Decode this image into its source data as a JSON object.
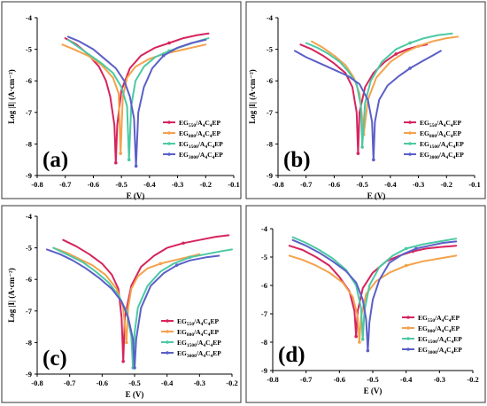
{
  "chart_data": [
    {
      "type": "line",
      "panel_label": "(a)",
      "xlabel": "E (V)",
      "ylabel": "Log |I| (A·cm⁻²)",
      "xlim": [
        -0.8,
        -0.1
      ],
      "ylim": [
        -9,
        -4
      ],
      "xticks": [
        "-0.8",
        "-0.7",
        "-0.6",
        "-0.5",
        "-0.4",
        "-0.3",
        "-0.2",
        "-0.1"
      ],
      "yticks": [
        "-4",
        "-5",
        "-6",
        "-7",
        "-8",
        "-9"
      ],
      "legend_position": "bottom-right",
      "series": [
        {
          "name": "EG550/A4C4EP",
          "color": "#d6245c",
          "x": [
            -0.7,
            -0.66,
            -0.62,
            -0.58,
            -0.555,
            -0.54,
            -0.525,
            -0.52,
            -0.515,
            -0.5,
            -0.47,
            -0.43,
            -0.38,
            -0.33,
            -0.28,
            -0.23,
            -0.19
          ],
          "y": [
            -4.65,
            -4.85,
            -5.15,
            -5.55,
            -6.0,
            -6.5,
            -7.4,
            -8.6,
            -7.4,
            -6.3,
            -5.6,
            -5.2,
            -4.95,
            -4.8,
            -4.65,
            -4.55,
            -4.5
          ]
        },
        {
          "name": "EG800/A4C4EP",
          "color": "#f4a24c",
          "x": [
            -0.71,
            -0.67,
            -0.62,
            -0.57,
            -0.53,
            -0.51,
            -0.503,
            -0.495,
            -0.48,
            -0.45,
            -0.4,
            -0.35,
            -0.3,
            -0.25,
            -0.2
          ],
          "y": [
            -4.85,
            -5.0,
            -5.2,
            -5.5,
            -5.9,
            -6.4,
            -8.3,
            -6.5,
            -5.9,
            -5.55,
            -5.3,
            -5.15,
            -5.05,
            -4.95,
            -4.85
          ]
        },
        {
          "name": "EG1500/A4C4EP",
          "color": "#4cc9a4",
          "x": [
            -0.69,
            -0.65,
            -0.61,
            -0.57,
            -0.53,
            -0.5,
            -0.48,
            -0.473,
            -0.465,
            -0.45,
            -0.42,
            -0.38,
            -0.33,
            -0.28,
            -0.23,
            -0.19
          ],
          "y": [
            -4.7,
            -4.95,
            -5.2,
            -5.45,
            -5.75,
            -6.2,
            -6.8,
            -8.5,
            -6.8,
            -6.0,
            -5.55,
            -5.25,
            -5.05,
            -4.9,
            -4.75,
            -4.65
          ]
        },
        {
          "name": "EG3000/A4C4EP",
          "color": "#5b5fc7",
          "x": [
            -0.69,
            -0.65,
            -0.6,
            -0.56,
            -0.52,
            -0.49,
            -0.47,
            -0.455,
            -0.448,
            -0.44,
            -0.42,
            -0.39,
            -0.35,
            -0.3,
            -0.25,
            -0.2
          ],
          "y": [
            -4.6,
            -4.75,
            -5.0,
            -5.3,
            -5.6,
            -6.0,
            -6.5,
            -7.2,
            -8.7,
            -7.0,
            -6.2,
            -5.6,
            -5.2,
            -4.95,
            -4.8,
            -4.7
          ]
        }
      ]
    },
    {
      "type": "line",
      "panel_label": "(b)",
      "xlabel": "E (V)",
      "ylabel": "Log |I| (A·cm⁻²)",
      "xlim": [
        -0.8,
        -0.1
      ],
      "ylim": [
        -9,
        -4
      ],
      "xticks": [
        "-0.8",
        "-0.7",
        "-0.6",
        "-0.5",
        "-0.4",
        "-0.3",
        "-0.2",
        "-0.1"
      ],
      "yticks": [
        "-4",
        "-5",
        "-6",
        "-7",
        "-8",
        "-9"
      ],
      "legend_position": "bottom-right",
      "series": [
        {
          "name": "EG550/A4C4EP",
          "color": "#d6245c",
          "x": [
            -0.72,
            -0.68,
            -0.64,
            -0.6,
            -0.56,
            -0.535,
            -0.52,
            -0.515,
            -0.51,
            -0.49,
            -0.46,
            -0.42,
            -0.38,
            -0.34,
            -0.3,
            -0.27
          ],
          "y": [
            -4.85,
            -5.0,
            -5.2,
            -5.45,
            -5.75,
            -6.2,
            -7.0,
            -8.3,
            -7.0,
            -6.2,
            -5.75,
            -5.4,
            -5.15,
            -5.0,
            -4.9,
            -4.85
          ]
        },
        {
          "name": "EG800/A4C4EP",
          "color": "#f4a24c",
          "x": [
            -0.68,
            -0.64,
            -0.6,
            -0.56,
            -0.53,
            -0.51,
            -0.5,
            -0.495,
            -0.48,
            -0.45,
            -0.4,
            -0.35,
            -0.3,
            -0.25,
            -0.2,
            -0.16
          ],
          "y": [
            -4.75,
            -4.95,
            -5.2,
            -5.5,
            -5.9,
            -6.4,
            -7.2,
            -7.7,
            -6.6,
            -5.9,
            -5.4,
            -5.1,
            -4.9,
            -4.75,
            -4.65,
            -4.6
          ]
        },
        {
          "name": "EG1500/A4C4EP",
          "color": "#4cc9a4",
          "x": [
            -0.7,
            -0.66,
            -0.62,
            -0.58,
            -0.55,
            -0.52,
            -0.505,
            -0.5,
            -0.49,
            -0.47,
            -0.43,
            -0.38,
            -0.33,
            -0.28,
            -0.23,
            -0.18
          ],
          "y": [
            -4.8,
            -4.95,
            -5.15,
            -5.4,
            -5.7,
            -6.1,
            -6.8,
            -8.1,
            -6.7,
            -6.0,
            -5.4,
            -5.0,
            -4.8,
            -4.65,
            -4.55,
            -4.5
          ]
        },
        {
          "name": "EG3000/A4C4EP",
          "color": "#5b5fc7",
          "x": [
            -0.74,
            -0.7,
            -0.65,
            -0.6,
            -0.55,
            -0.51,
            -0.48,
            -0.465,
            -0.46,
            -0.455,
            -0.44,
            -0.41,
            -0.37,
            -0.33,
            -0.29,
            -0.25,
            -0.22
          ],
          "y": [
            -5.05,
            -5.25,
            -5.45,
            -5.65,
            -5.85,
            -6.1,
            -6.6,
            -7.3,
            -8.5,
            -7.3,
            -6.6,
            -6.15,
            -5.85,
            -5.6,
            -5.4,
            -5.2,
            -5.05
          ]
        }
      ]
    },
    {
      "type": "line",
      "panel_label": "(c)",
      "xlabel": "E (V)",
      "ylabel": "Log |I| (A·cm⁻²)",
      "xlim": [
        -0.8,
        -0.2
      ],
      "ylim": [
        -9,
        -4
      ],
      "xticks": [
        "-0.8",
        "-0.7",
        "-0.6",
        "-0.5",
        "-0.4",
        "-0.3",
        "-0.2"
      ],
      "yticks": [
        "-4",
        "-5",
        "-6",
        "-7",
        "-8",
        "-9"
      ],
      "legend_position": "bottom-right",
      "series": [
        {
          "name": "EG550/A4C4EP",
          "color": "#d6245c",
          "x": [
            -0.72,
            -0.68,
            -0.64,
            -0.6,
            -0.57,
            -0.55,
            -0.54,
            -0.535,
            -0.53,
            -0.51,
            -0.48,
            -0.44,
            -0.4,
            -0.35,
            -0.3,
            -0.25,
            -0.21
          ],
          "y": [
            -4.75,
            -4.95,
            -5.2,
            -5.5,
            -5.85,
            -6.3,
            -7.2,
            -8.6,
            -7.2,
            -6.2,
            -5.6,
            -5.25,
            -5.0,
            -4.85,
            -4.75,
            -4.65,
            -4.6
          ]
        },
        {
          "name": "EG800/A4C4EP",
          "color": "#f4a24c",
          "x": [
            -0.75,
            -0.71,
            -0.67,
            -0.63,
            -0.59,
            -0.555,
            -0.535,
            -0.525,
            -0.52,
            -0.51,
            -0.49,
            -0.46,
            -0.42,
            -0.38,
            -0.34,
            -0.3
          ],
          "y": [
            -5.0,
            -5.15,
            -5.35,
            -5.55,
            -5.85,
            -6.3,
            -6.9,
            -8.0,
            -6.9,
            -6.3,
            -5.9,
            -5.65,
            -5.5,
            -5.4,
            -5.3,
            -5.2
          ]
        },
        {
          "name": "EG1500/A4C4EP",
          "color": "#4cc9a4",
          "x": [
            -0.75,
            -0.71,
            -0.66,
            -0.62,
            -0.58,
            -0.55,
            -0.525,
            -0.51,
            -0.505,
            -0.5,
            -0.49,
            -0.46,
            -0.42,
            -0.38,
            -0.33,
            -0.28,
            -0.23,
            -0.2
          ],
          "y": [
            -5.0,
            -5.2,
            -5.45,
            -5.75,
            -6.1,
            -6.5,
            -7.0,
            -7.8,
            -8.8,
            -7.7,
            -6.9,
            -6.2,
            -5.75,
            -5.5,
            -5.3,
            -5.2,
            -5.1,
            -5.05
          ]
        },
        {
          "name": "EG3000/A4C4EP",
          "color": "#5b5fc7",
          "x": [
            -0.77,
            -0.73,
            -0.69,
            -0.65,
            -0.61,
            -0.57,
            -0.54,
            -0.52,
            -0.505,
            -0.5,
            -0.495,
            -0.48,
            -0.45,
            -0.41,
            -0.37,
            -0.33,
            -0.28,
            -0.24
          ],
          "y": [
            -5.05,
            -5.2,
            -5.4,
            -5.65,
            -5.95,
            -6.3,
            -6.7,
            -7.2,
            -7.9,
            -8.8,
            -7.9,
            -6.9,
            -6.2,
            -5.8,
            -5.55,
            -5.4,
            -5.3,
            -5.25
          ]
        }
      ]
    },
    {
      "type": "line",
      "panel_label": "(d)",
      "xlabel": "E (V)",
      "ylabel": "",
      "xlim": [
        -0.8,
        -0.2
      ],
      "ylim": [
        -9,
        -4
      ],
      "xticks": [
        "-0.8",
        "-0.7",
        "-0.6",
        "-0.5",
        "-0.4",
        "-0.3",
        "-0.2"
      ],
      "yticks": [
        "-4",
        "-5",
        "-6",
        "-7",
        "-8",
        "-9"
      ],
      "legend_position": "bottom-right",
      "series": [
        {
          "name": "EG550/A4C4EP",
          "color": "#d6245c",
          "x": [
            -0.75,
            -0.71,
            -0.67,
            -0.63,
            -0.6,
            -0.57,
            -0.555,
            -0.55,
            -0.545,
            -0.53,
            -0.5,
            -0.46,
            -0.42,
            -0.38,
            -0.34,
            -0.3,
            -0.25
          ],
          "y": [
            -4.6,
            -4.75,
            -5.0,
            -5.3,
            -5.7,
            -6.2,
            -6.9,
            -7.8,
            -6.9,
            -6.1,
            -5.55,
            -5.15,
            -4.95,
            -4.8,
            -4.7,
            -4.65,
            -4.6
          ]
        },
        {
          "name": "EG800/A4C4EP",
          "color": "#f4a24c",
          "x": [
            -0.75,
            -0.71,
            -0.67,
            -0.63,
            -0.59,
            -0.56,
            -0.545,
            -0.54,
            -0.535,
            -0.52,
            -0.49,
            -0.45,
            -0.4,
            -0.35,
            -0.3,
            -0.25
          ],
          "y": [
            -4.95,
            -5.1,
            -5.3,
            -5.55,
            -5.9,
            -6.4,
            -7.1,
            -8.0,
            -7.1,
            -6.3,
            -5.85,
            -5.55,
            -5.3,
            -5.15,
            -5.05,
            -4.95
          ]
        },
        {
          "name": "EG1500/A4C4EP",
          "color": "#4cc9a4",
          "x": [
            -0.74,
            -0.7,
            -0.66,
            -0.62,
            -0.58,
            -0.55,
            -0.535,
            -0.53,
            -0.525,
            -0.51,
            -0.48,
            -0.44,
            -0.4,
            -0.35,
            -0.3,
            -0.25
          ],
          "y": [
            -4.3,
            -4.5,
            -4.75,
            -5.05,
            -5.45,
            -6.0,
            -6.8,
            -7.9,
            -6.9,
            -6.0,
            -5.35,
            -4.95,
            -4.7,
            -4.55,
            -4.45,
            -4.35
          ]
        },
        {
          "name": "EG3000/A4C4EP",
          "color": "#5b5fc7",
          "x": [
            -0.74,
            -0.7,
            -0.66,
            -0.62,
            -0.58,
            -0.55,
            -0.53,
            -0.52,
            -0.515,
            -0.51,
            -0.5,
            -0.48,
            -0.45,
            -0.41,
            -0.37,
            -0.33,
            -0.29,
            -0.25
          ],
          "y": [
            -4.4,
            -4.6,
            -4.85,
            -5.15,
            -5.5,
            -5.9,
            -6.5,
            -7.2,
            -8.3,
            -7.3,
            -6.5,
            -5.8,
            -5.2,
            -4.9,
            -4.7,
            -4.6,
            -4.5,
            -4.45
          ]
        }
      ]
    }
  ]
}
